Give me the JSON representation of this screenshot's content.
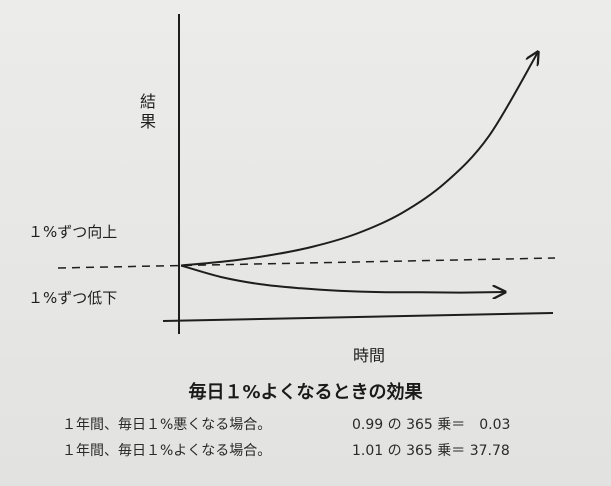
{
  "chart_data": {
    "type": "line",
    "title": "毎日１%よくなるときの効果",
    "xlabel": "時間",
    "ylabel": "結果",
    "xlim": [
      0,
      365
    ],
    "ylim": [
      0,
      40
    ],
    "grid": false,
    "baseline": {
      "y": 1,
      "style": "dashed"
    },
    "series": [
      {
        "name": "１%ずつ向上",
        "x": [
          0,
          45,
          90,
          135,
          180,
          225,
          270,
          315,
          365
        ],
        "y": [
          1,
          1.56,
          2.45,
          3.83,
          5.99,
          9.37,
          14.65,
          22.92,
          37.78
        ]
      },
      {
        "name": "１%ずつ低下",
        "x": [
          0,
          45,
          90,
          135,
          180,
          225,
          270,
          315,
          365
        ],
        "y": [
          1,
          0.64,
          0.4,
          0.26,
          0.16,
          0.1,
          0.07,
          0.04,
          0.03
        ]
      }
    ],
    "annotations": [
      {
        "text": "１%ずつ向上"
      },
      {
        "text": "１%ずつ低下"
      }
    ]
  },
  "notes": [
    {
      "left": "１年間、毎日１%悪くなる場合。",
      "right": "0.99 の 365 乗＝　0.03"
    },
    {
      "left": "１年間、毎日１%よくなる場合。",
      "right": "1.01 の 365 乗＝ 37.78"
    }
  ]
}
